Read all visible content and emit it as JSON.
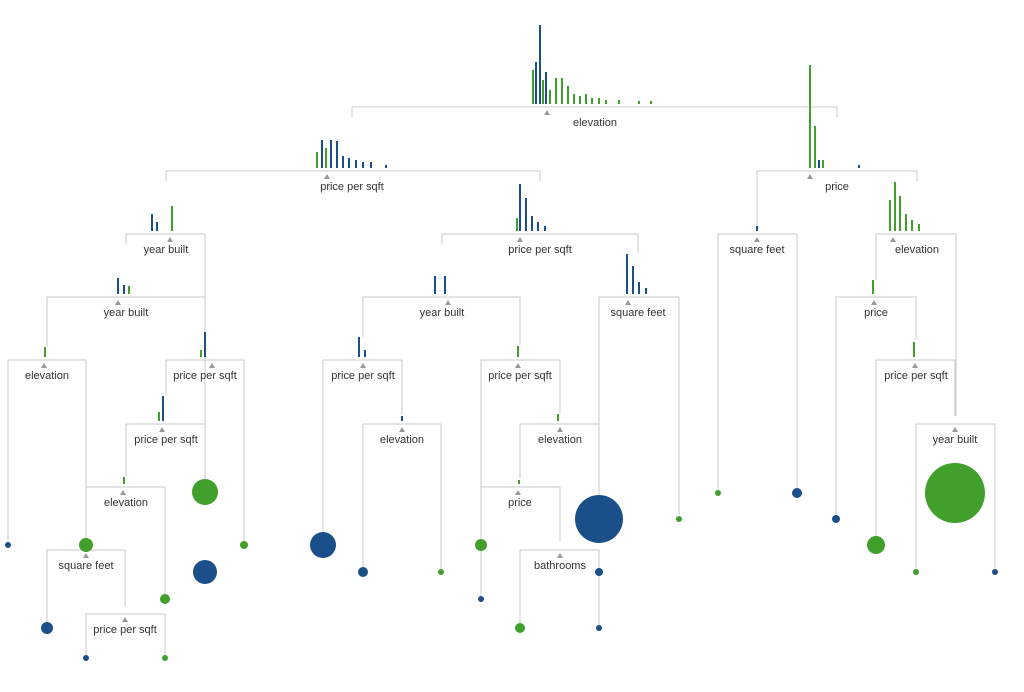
{
  "nodes": [
    {
      "label": "elevation"
    },
    {
      "label": "price per sqft"
    },
    {
      "label": "price"
    },
    {
      "label": "year built"
    },
    {
      "label": "price per sqft"
    },
    {
      "label": "square feet"
    },
    {
      "label": "elevation"
    },
    {
      "label": "year built"
    },
    {
      "label": "year built"
    },
    {
      "label": "square feet"
    },
    {
      "label": "price"
    },
    {
      "label": "elevation"
    },
    {
      "label": "price per sqft"
    },
    {
      "label": "price per sqft"
    },
    {
      "label": "price per sqft"
    },
    {
      "label": "price per sqft"
    },
    {
      "label": "price per sqft"
    },
    {
      "label": "elevation"
    },
    {
      "label": "elevation"
    },
    {
      "label": "year built"
    },
    {
      "label": "elevation"
    },
    {
      "label": "price"
    },
    {
      "label": "square feet"
    },
    {
      "label": "bathrooms"
    },
    {
      "label": "price per sqft"
    }
  ]
}
